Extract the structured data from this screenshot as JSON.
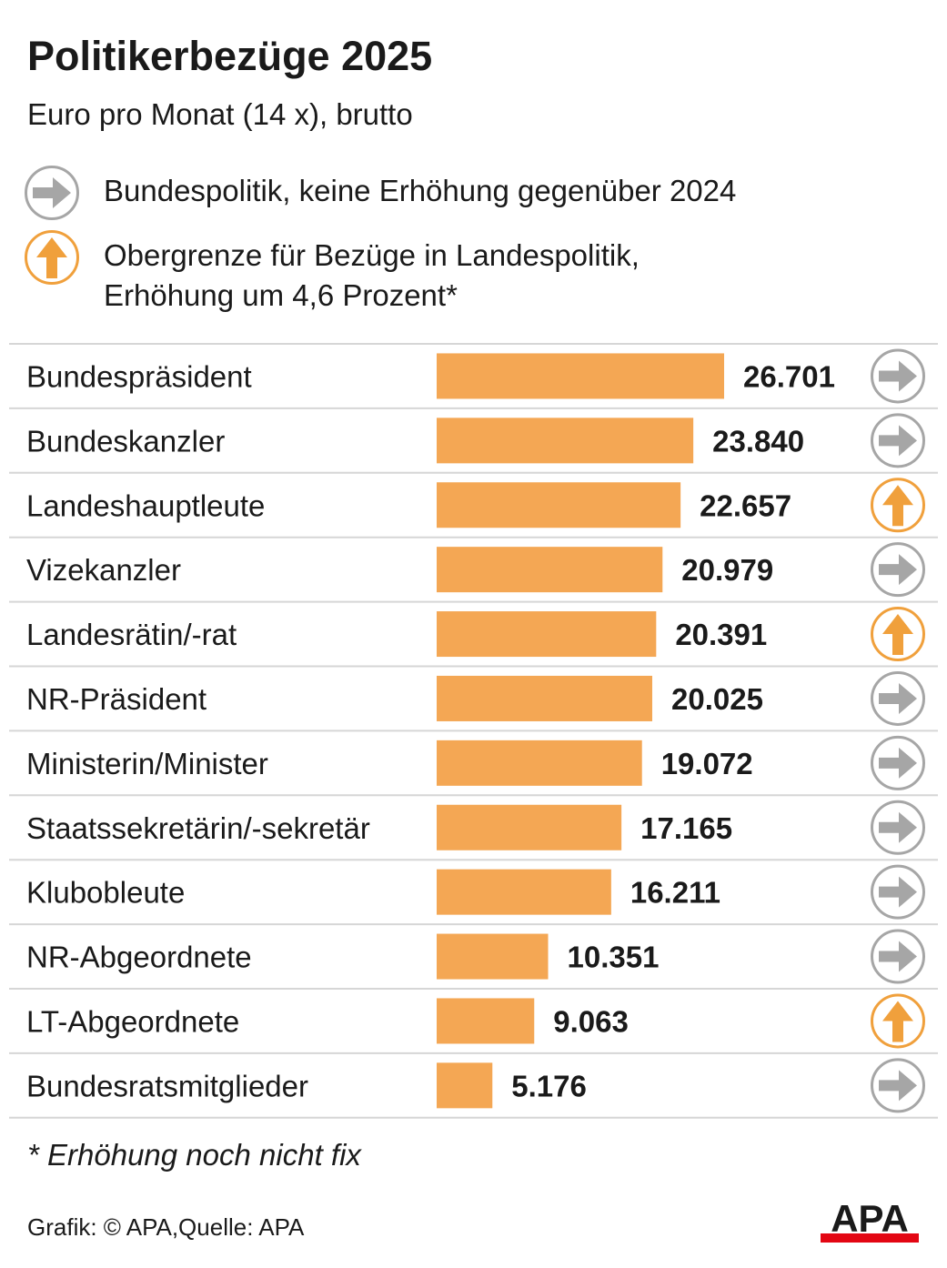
{
  "header": {
    "title": "Politikerbezüge 2025",
    "subtitle": "Euro pro Monat (14 x), brutto"
  },
  "legend": [
    {
      "icon": "arrow-right-circle-icon",
      "color": "#a6a6a6",
      "lines": [
        "Bundespolitik, keine Erhöhung gegenüber 2024"
      ]
    },
    {
      "icon": "arrow-up-circle-icon",
      "color": "#f0a03c",
      "lines": [
        "Obergrenze für Bezüge in Landespolitik,",
        "Erhöhung um 4,6 Prozent*"
      ]
    }
  ],
  "chart_data": {
    "type": "bar",
    "orientation": "horizontal",
    "categories": [
      "Bundespräsident",
      "Bundeskanzler",
      "Landeshauptleute",
      "Vizekanzler",
      "Landesrätin/-rat",
      "NR-Präsident",
      "Ministerin/Minister",
      "Staatssekretärin/-sekretär",
      "Klubobleute",
      "NR-Abgeordnete",
      "LT-Abgeordnete",
      "Bundesratsmitglieder"
    ],
    "values": [
      26701,
      23840,
      22657,
      20979,
      20391,
      20025,
      19072,
      17165,
      16211,
      10351,
      9063,
      5176
    ],
    "value_labels": [
      "26.701",
      "23.840",
      "22.657",
      "20.979",
      "20.391",
      "20.025",
      "19.072",
      "17.165",
      "16.211",
      "10.351",
      "9.063",
      "5.176"
    ],
    "markers": [
      "right",
      "right",
      "up",
      "right",
      "up",
      "right",
      "right",
      "right",
      "right",
      "right",
      "up",
      "right"
    ],
    "xlim": [
      0,
      26701
    ],
    "bar_color": "#f4a754",
    "grid": false
  },
  "footnote": "* Erhöhung noch nicht fix",
  "source": "Grafik: © APA,Quelle: APA",
  "logo": {
    "text": "APA",
    "text_color": "#1a1a1a",
    "bar_color": "#e30613"
  }
}
